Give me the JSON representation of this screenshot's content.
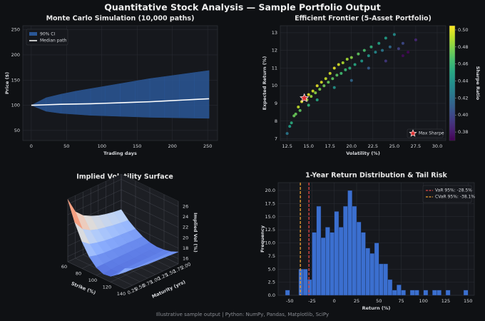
{
  "title": "Quantitative Stock Analysis — Sample Portfolio Output",
  "footer": "Illustrative sample output  |  Python: NumPy, Pandas, Matplotlib, SciPy",
  "chart_data": [
    {
      "type": "line",
      "title": "Monte Carlo Simulation (10,000 paths)",
      "x_label": "Trading days",
      "y_label": "Price ($)",
      "x": [
        0,
        21,
        42,
        63,
        84,
        105,
        126,
        147,
        168,
        189,
        210,
        231,
        252
      ],
      "band": {
        "name": "90% CI",
        "color": "#2a5797",
        "lower": [
          100,
          88,
          84,
          82,
          80,
          79,
          78,
          77,
          76,
          75.5,
          75,
          74.5,
          74
        ],
        "upper": [
          100,
          115,
          122,
          128,
          133,
          138,
          143,
          148,
          153,
          157,
          161,
          165,
          169
        ]
      },
      "series": [
        {
          "name": "Median path",
          "color": "#ffffff",
          "values": [
            100,
            101,
            102,
            102.5,
            103,
            104,
            105,
            106,
            107,
            108.5,
            110,
            111.5,
            113
          ]
        }
      ],
      "xlim": [
        -12,
        264
      ],
      "xticks": [
        0,
        50,
        100,
        150,
        200,
        250
      ],
      "ylim": [
        30,
        258
      ],
      "yticks": [
        50,
        100,
        150,
        200,
        250
      ],
      "grid": true,
      "legend": "upper left"
    },
    {
      "type": "scatter",
      "title": "Efficient Frontier (5-Asset Portfolio)",
      "x_label": "Volatility (%)",
      "y_label": "Expected Return (%)",
      "x": [
        12.5,
        12.8,
        13.0,
        13.3,
        13.5,
        13.8,
        14.0,
        14.2,
        14.5,
        14.8,
        15.0,
        15.3,
        15.5,
        15.8,
        16.0,
        16.3,
        16.5,
        16.8,
        17.0,
        17.3,
        17.5,
        17.8,
        18.0,
        18.3,
        18.5,
        18.8,
        19.0,
        19.3,
        19.5,
        19.8,
        20.0,
        20.4,
        20.8,
        21.2,
        21.5,
        22.0,
        22.3,
        22.8,
        23.2,
        23.6,
        24.0,
        24.5,
        25.0,
        25.5,
        26.0,
        26.6,
        27.5,
        22.0,
        24.0,
        18.0,
        20.0,
        16.0,
        15.0,
        26.0
      ],
      "y": [
        7.3,
        7.7,
        7.9,
        8.3,
        8.4,
        8.8,
        8.6,
        9.1,
        9.3,
        9.2,
        9.5,
        9.4,
        9.7,
        9.6,
        10.0,
        9.8,
        10.2,
        10.0,
        10.4,
        10.2,
        10.7,
        10.4,
        11.0,
        10.6,
        11.2,
        10.7,
        11.3,
        10.9,
        11.5,
        11.0,
        11.6,
        11.2,
        11.8,
        11.4,
        12.0,
        11.7,
        12.2,
        11.9,
        12.4,
        12.0,
        12.7,
        12.2,
        12.9,
        12.1,
        12.4,
        11.9,
        12.6,
        11.0,
        11.4,
        9.9,
        10.3,
        9.2,
        8.9,
        11.7
      ],
      "sharpe": [
        0.424,
        0.445,
        0.454,
        0.474,
        0.474,
        0.493,
        0.471,
        0.5,
        0.503,
        0.486,
        0.5,
        0.484,
        0.497,
        0.481,
        0.5,
        0.479,
        0.497,
        0.476,
        0.494,
        0.474,
        0.497,
        0.472,
        0.5,
        0.47,
        0.497,
        0.463,
        0.489,
        0.461,
        0.487,
        0.455,
        0.48,
        0.451,
        0.471,
        0.443,
        0.465,
        0.441,
        0.457,
        0.434,
        0.448,
        0.424,
        0.446,
        0.416,
        0.436,
        0.396,
        0.4,
        0.372,
        0.385,
        0.409,
        0.392,
        0.439,
        0.415,
        0.45,
        0.46,
        0.373
      ],
      "colormap": "viridis",
      "colorbar_label": "Sharpe Ratio",
      "clim": [
        0.37,
        0.505
      ],
      "cticks": [
        0.38,
        {
          "value": 0.4,
          "label": "0.40"
        },
        0.42,
        0.44,
        0.46,
        0.48,
        {
          "value": 0.5,
          "label": "0.50"
        }
      ],
      "highlight": {
        "name": "Max Sharpe",
        "x": 14.5,
        "y": 9.3,
        "color": "#e03030"
      },
      "xlim": [
        11.7,
        31
      ],
      "xticks": [
        12.5,
        {
          "value": 15,
          "label": "15.0"
        },
        17.5,
        {
          "value": 20,
          "label": "20.0"
        },
        22.5,
        {
          "value": 25,
          "label": "25.0"
        },
        27.5,
        {
          "value": 30,
          "label": "30.0"
        }
      ],
      "ylim": [
        6.9,
        13.4
      ],
      "yticks": [
        7,
        8,
        9,
        10,
        11,
        12,
        13
      ],
      "grid": true,
      "legend": "lower right"
    },
    {
      "type": "surface",
      "title": "Implied Volatility Surface",
      "x_label": "Strike (%)",
      "y_label": "Maturity (yrs)",
      "z_label": "Implied Vol (%)",
      "strikes": [
        60,
        70,
        80,
        90,
        100,
        110,
        120,
        130,
        140
      ],
      "maturities": [
        0.25,
        0.5,
        0.75,
        1,
        1.25,
        1.5,
        1.75,
        2
      ],
      "iv": [
        [
          26.9,
          23.1,
          20.1,
          17.9,
          16.5,
          15.9,
          16.1,
          17.1,
          18.9
        ],
        [
          23.9,
          21.2,
          19.0,
          17.5,
          16.5,
          16.1,
          16.2,
          16.9,
          18.2
        ],
        [
          22.5,
          20.3,
          18.6,
          17.3,
          16.5,
          16.2,
          16.3,
          16.8,
          17.9
        ],
        [
          21.7,
          19.8,
          18.3,
          17.2,
          16.5,
          16.2,
          16.3,
          16.8,
          17.7
        ],
        [
          21.1,
          19.5,
          18.1,
          17.1,
          16.5,
          16.2,
          16.3,
          16.8,
          17.6
        ],
        [
          20.7,
          19.2,
          18.0,
          17.1,
          16.5,
          16.3,
          16.3,
          16.7,
          17.5
        ],
        [
          20.4,
          19.0,
          17.9,
          17.0,
          16.5,
          16.3,
          16.3,
          16.7,
          17.4
        ],
        [
          20.2,
          18.8,
          17.8,
          17.0,
          16.5,
          16.3,
          16.4,
          16.7,
          17.3
        ]
      ],
      "colormap": "coolwarm",
      "xlim": [
        60,
        140
      ],
      "xticks": [
        60,
        80,
        100,
        120,
        140
      ],
      "ylim": [
        0.25,
        2
      ],
      "yticks": [
        0.25,
        {
          "value": 0.5,
          "label": "0.50"
        },
        0.75,
        {
          "value": 1,
          "label": "1.00"
        },
        1.25,
        {
          "value": 1.5,
          "label": "1.50"
        },
        1.75,
        {
          "value": 2,
          "label": "2.00"
        }
      ],
      "zlim": [
        15,
        27
      ],
      "zticks": [
        16,
        18,
        20,
        22,
        24,
        26
      ]
    },
    {
      "type": "histogram",
      "title": "1-Year Return Distribution & Tail Risk",
      "x_label": "Return (%)",
      "y_label": "Frequency",
      "color": "#3b6fcf",
      "bins": [
        -55,
        -50,
        -45,
        -40,
        -35,
        -30,
        -25,
        -20,
        -15,
        -10,
        -5,
        0,
        5,
        10,
        15,
        20,
        25,
        30,
        35,
        40,
        45,
        50,
        55,
        60,
        65,
        70,
        75,
        80,
        85,
        90,
        95,
        100,
        105,
        110,
        115,
        120,
        125,
        130,
        135,
        140,
        145,
        150
      ],
      "counts": [
        1,
        0,
        0,
        5,
        5,
        3,
        12,
        17,
        11,
        13,
        12,
        16,
        13,
        17,
        20,
        17,
        14,
        12,
        9,
        8,
        10,
        6,
        6,
        3,
        1,
        2,
        1,
        0,
        1,
        1,
        0,
        1,
        0,
        1,
        1,
        0,
        1,
        0,
        0,
        0,
        1
      ],
      "vlines": [
        {
          "name": "VaR 95%: -28.5%",
          "value": -28.5,
          "color": "#e04848"
        },
        {
          "name": "CVaR 95%: -38.1%",
          "value": -38.1,
          "color": "#f0a030"
        }
      ],
      "xlim": [
        -63,
        157
      ],
      "xticks": [
        -50,
        -25,
        0,
        25,
        50,
        75,
        100,
        125,
        150
      ],
      "ylim": [
        0,
        21.5
      ],
      "yticks": [
        {
          "value": 0,
          "label": "0.0"
        },
        2.5,
        {
          "value": 5,
          "label": "5.0"
        },
        7.5,
        {
          "value": 10,
          "label": "10.0"
        },
        12.5,
        {
          "value": 15,
          "label": "15.0"
        },
        17.5,
        {
          "value": 20,
          "label": "20.0"
        }
      ],
      "grid": true,
      "legend": "upper right"
    }
  ]
}
